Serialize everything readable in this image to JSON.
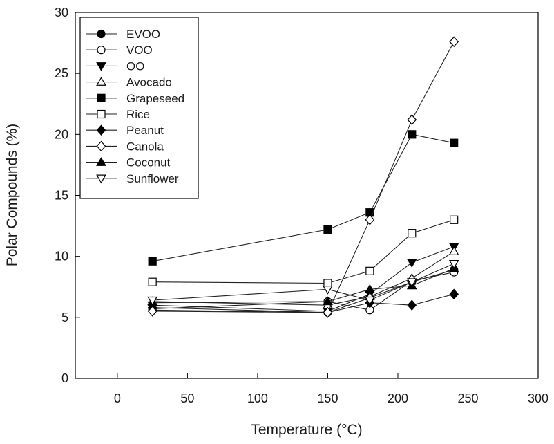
{
  "chart_data": {
    "type": "line",
    "title": "",
    "xlabel": "Temperature (°C)",
    "ylabel": "Polar Compounds (%)",
    "xlim": [
      -30,
      300
    ],
    "ylim": [
      0,
      30
    ],
    "x_ticks": [
      0,
      50,
      100,
      150,
      200,
      250,
      300
    ],
    "y_ticks": [
      0,
      5,
      10,
      15,
      20,
      25,
      30
    ],
    "grid": false,
    "legend_position": "top-left",
    "series": [
      {
        "name": "EVOO",
        "marker": "circle",
        "fill": "black",
        "x": [
          25,
          150,
          180,
          210,
          240
        ],
        "y": [
          5.6,
          5.4,
          6.6,
          7.9,
          8.9
        ]
      },
      {
        "name": "VOO",
        "marker": "circle",
        "fill": "white",
        "x": [
          25,
          150,
          180,
          210,
          240
        ],
        "y": [
          5.7,
          6.3,
          5.6,
          8.0,
          8.7
        ]
      },
      {
        "name": "OO",
        "marker": "triangle-down",
        "fill": "black",
        "x": [
          25,
          150,
          180,
          210,
          240
        ],
        "y": [
          6.0,
          5.5,
          6.9,
          9.5,
          10.8
        ]
      },
      {
        "name": "Avocado",
        "marker": "triangle-up",
        "fill": "white",
        "x": [
          25,
          150,
          180,
          210,
          240
        ],
        "y": [
          6.3,
          6.0,
          6.7,
          8.2,
          10.4
        ]
      },
      {
        "name": "Grapeseed",
        "marker": "square",
        "fill": "black",
        "x": [
          25,
          150,
          180,
          210,
          240
        ],
        "y": [
          9.6,
          12.2,
          13.6,
          20.0,
          19.3
        ]
      },
      {
        "name": "Rice",
        "marker": "square",
        "fill": "white",
        "x": [
          25,
          150,
          180,
          210,
          240
        ],
        "y": [
          7.9,
          7.8,
          8.8,
          11.9,
          13.0
        ]
      },
      {
        "name": "Peanut",
        "marker": "diamond",
        "fill": "black",
        "x": [
          25,
          150,
          180,
          210,
          240
        ],
        "y": [
          5.8,
          5.4,
          6.2,
          6.0,
          6.9
        ]
      },
      {
        "name": "Canola",
        "marker": "diamond",
        "fill": "white",
        "x": [
          25,
          150,
          180,
          210,
          240
        ],
        "y": [
          5.5,
          5.4,
          13.0,
          21.2,
          27.6
        ]
      },
      {
        "name": "Coconut",
        "marker": "triangle-up",
        "fill": "black",
        "x": [
          25,
          150,
          180,
          210,
          240
        ],
        "y": [
          6.2,
          6.3,
          7.3,
          7.6,
          9.0
        ]
      },
      {
        "name": "Sunflower",
        "marker": "triangle-down",
        "fill": "white",
        "x": [
          25,
          150,
          180,
          210,
          240
        ],
        "y": [
          6.4,
          7.3,
          6.4,
          7.9,
          9.4
        ]
      }
    ]
  }
}
